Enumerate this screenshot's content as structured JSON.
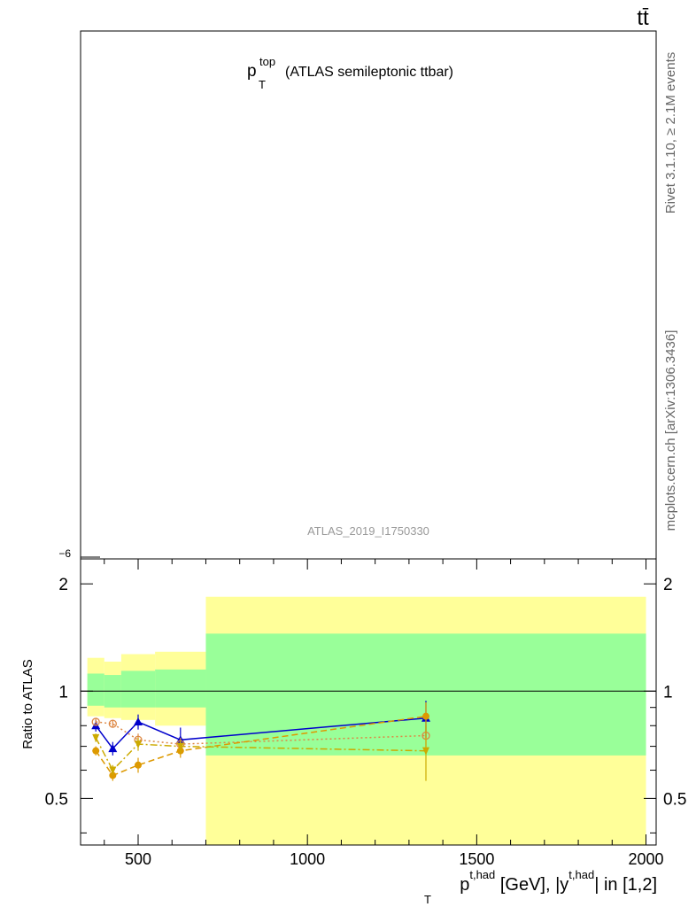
{
  "header": {
    "process_label": "tt̄",
    "side_label_top": "Rivet 3.1.10, ≥ 2.1M events",
    "side_label_bottom": "mcplots.cern.ch [arXiv:1306.3436]"
  },
  "main_panel": {
    "title_main": "p",
    "title_sup": "top",
    "title_sub": "T",
    "title_rest": "(ATLAS semileptonic ttbar)",
    "analysis_id": "ATLAS_2019_I1750330",
    "y_tick_label": "−6"
  },
  "chart_data": {
    "type": "line",
    "ylabel": "Ratio to ATLAS",
    "xlabel_parts": {
      "p": "p",
      "p_sup": "t,had",
      "p_sub": "T",
      "mid": "[GeV], |y",
      "y_sup": "t,had",
      "end": "| in [1,2]"
    },
    "xlim": [
      330,
      2030
    ],
    "ylim": [
      0.37,
      2.35
    ],
    "y_scale": "log",
    "x_ticks": [
      500,
      1000,
      1500,
      2000
    ],
    "x_tick_labels": [
      "500",
      "1000",
      "1500",
      "2000"
    ],
    "y_ticks": [
      0.5,
      1,
      2
    ],
    "y_tick_labels": [
      "0.5",
      "1",
      "2"
    ],
    "bins": [
      [
        350,
        400
      ],
      [
        400,
        450
      ],
      [
        450,
        550
      ],
      [
        550,
        700
      ],
      [
        700,
        2000
      ]
    ],
    "band_yellow": [
      [
        0.85,
        1.24
      ],
      [
        0.84,
        1.21
      ],
      [
        0.83,
        1.27
      ],
      [
        0.8,
        1.29
      ],
      [
        0.36,
        1.84
      ]
    ],
    "band_green": [
      [
        0.91,
        1.12
      ],
      [
        0.9,
        1.11
      ],
      [
        0.9,
        1.14
      ],
      [
        0.9,
        1.15
      ],
      [
        0.66,
        1.45
      ]
    ],
    "series": [
      {
        "color": "#0000cc",
        "marker": "triangle",
        "dash": "solid",
        "x": [
          375,
          425,
          500,
          625,
          1350
        ],
        "y": [
          0.8,
          0.69,
          0.82,
          0.73,
          0.84
        ],
        "yerr": [
          0.03,
          0.03,
          0.04,
          0.06,
          0.1
        ]
      },
      {
        "color": "#dd8844",
        "marker": "open-circle",
        "dash": "2,3",
        "x": [
          375,
          425,
          500,
          625,
          1350
        ],
        "y": [
          0.82,
          0.81,
          0.73,
          0.71,
          0.75
        ],
        "yerr": [
          0.02,
          0.02,
          0.03,
          0.03,
          0.05
        ]
      },
      {
        "color": "#dd9900",
        "marker": "filled-circle",
        "dash": "7,4",
        "x": [
          375,
          425,
          500,
          625,
          1350
        ],
        "y": [
          0.68,
          0.58,
          0.62,
          0.68,
          0.85
        ],
        "yerr": [
          0.02,
          0.02,
          0.03,
          0.03,
          0.08
        ]
      },
      {
        "color": "#ccaa00",
        "marker": "down-triangle",
        "dash": "8,3,2,3",
        "x": [
          375,
          425,
          500,
          625,
          1350
        ],
        "y": [
          0.74,
          0.6,
          0.71,
          0.7,
          0.68
        ],
        "yerr": [
          0.02,
          0.02,
          0.03,
          0.03,
          0.12
        ]
      }
    ]
  }
}
